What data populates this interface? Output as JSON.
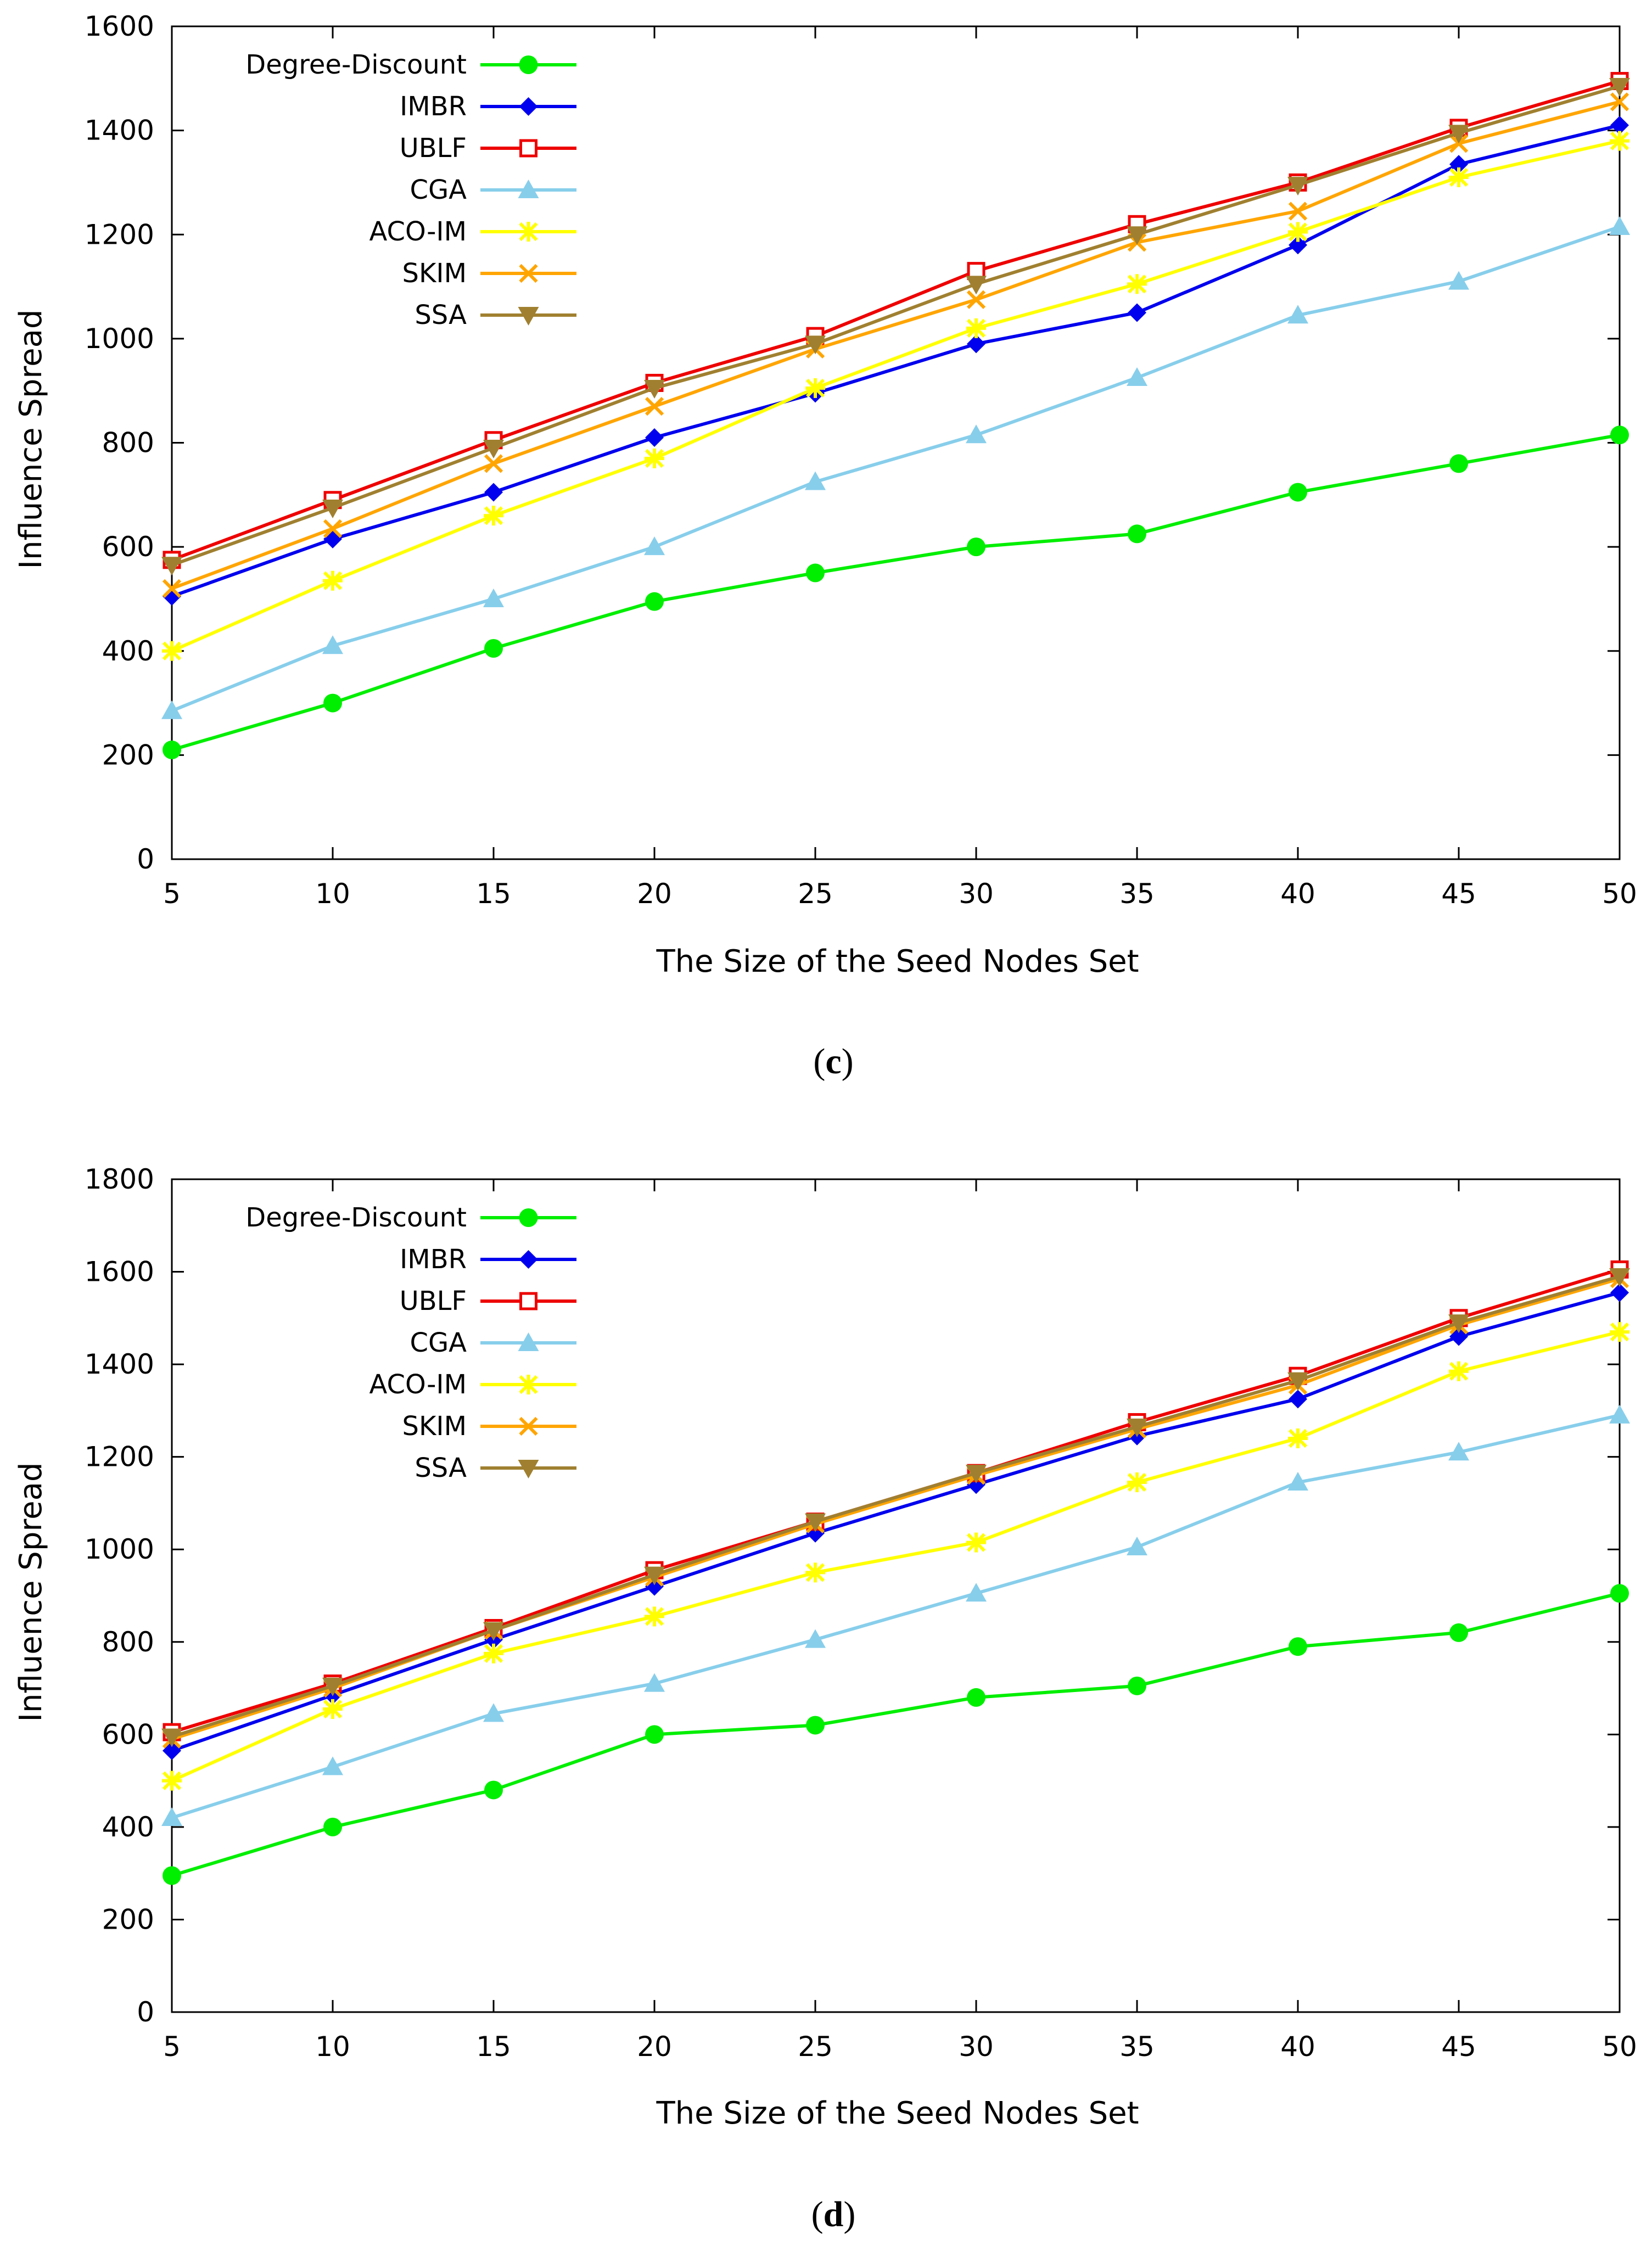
{
  "chart_data": [
    {
      "type": "line",
      "panel": "c",
      "caption_open": "(",
      "caption_letter": "c",
      "caption_close": ")",
      "xlabel": "The Size of the Seed Nodes Set",
      "ylabel": "Influence Spread",
      "x": [
        5,
        10,
        15,
        20,
        25,
        30,
        35,
        40,
        45,
        50
      ],
      "xlim": [
        5,
        50
      ],
      "ylim": [
        0,
        1600
      ],
      "yticks": [
        0,
        200,
        400,
        600,
        800,
        1000,
        1200,
        1400,
        1600
      ],
      "legend_position": "top-left",
      "series": [
        {
          "name": "Degree-Discount",
          "color": "#00ee00",
          "marker": "circle",
          "values": [
            210,
            300,
            405,
            495,
            550,
            600,
            625,
            705,
            760,
            815
          ]
        },
        {
          "name": "IMBR",
          "color": "#0000ee",
          "marker": "diamond",
          "values": [
            505,
            615,
            705,
            810,
            895,
            990,
            1050,
            1180,
            1335,
            1410
          ]
        },
        {
          "name": "UBLF",
          "color": "#ee0000",
          "marker": "square",
          "values": [
            575,
            690,
            805,
            915,
            1005,
            1130,
            1220,
            1300,
            1405,
            1495
          ]
        },
        {
          "name": "CGA",
          "color": "#87ceeb",
          "marker": "triangle",
          "values": [
            285,
            410,
            500,
            600,
            725,
            815,
            925,
            1045,
            1110,
            1215
          ]
        },
        {
          "name": "ACO-IM",
          "color": "#ffff00",
          "marker": "star",
          "values": [
            400,
            535,
            660,
            770,
            905,
            1020,
            1105,
            1205,
            1310,
            1380
          ]
        },
        {
          "name": "SKIM",
          "color": "#ffa500",
          "marker": "x",
          "values": [
            520,
            635,
            760,
            870,
            980,
            1075,
            1185,
            1245,
            1375,
            1455
          ]
        },
        {
          "name": "SSA",
          "color": "#a08030",
          "marker": "triangle-down",
          "values": [
            565,
            675,
            790,
            905,
            990,
            1105,
            1200,
            1295,
            1395,
            1485
          ]
        }
      ]
    },
    {
      "type": "line",
      "panel": "d",
      "caption_open": "(",
      "caption_letter": "d",
      "caption_close": ")",
      "xlabel": "The Size of the Seed Nodes Set",
      "ylabel": "Influence Spread",
      "x": [
        5,
        10,
        15,
        20,
        25,
        30,
        35,
        40,
        45,
        50
      ],
      "xlim": [
        5,
        50
      ],
      "ylim": [
        0,
        1800
      ],
      "yticks": [
        0,
        200,
        400,
        600,
        800,
        1000,
        1200,
        1400,
        1600,
        1800
      ],
      "legend_position": "top-left",
      "series": [
        {
          "name": "Degree-Discount",
          "color": "#00ee00",
          "marker": "circle",
          "values": [
            295,
            400,
            480,
            600,
            620,
            680,
            705,
            790,
            820,
            905
          ]
        },
        {
          "name": "IMBR",
          "color": "#0000ee",
          "marker": "diamond",
          "values": [
            565,
            685,
            805,
            920,
            1035,
            1140,
            1245,
            1325,
            1460,
            1555
          ]
        },
        {
          "name": "UBLF",
          "color": "#ee0000",
          "marker": "square",
          "values": [
            605,
            710,
            830,
            955,
            1060,
            1165,
            1275,
            1375,
            1500,
            1605
          ]
        },
        {
          "name": "CGA",
          "color": "#87ceeb",
          "marker": "triangle",
          "values": [
            420,
            530,
            645,
            710,
            805,
            905,
            1005,
            1145,
            1210,
            1290
          ]
        },
        {
          "name": "ACO-IM",
          "color": "#ffff00",
          "marker": "star",
          "values": [
            500,
            655,
            775,
            855,
            950,
            1015,
            1145,
            1240,
            1385,
            1470
          ]
        },
        {
          "name": "SKIM",
          "color": "#ffa500",
          "marker": "x",
          "values": [
            590,
            700,
            825,
            940,
            1055,
            1160,
            1260,
            1355,
            1485,
            1585
          ]
        },
        {
          "name": "SSA",
          "color": "#a08030",
          "marker": "triangle-down",
          "values": [
            595,
            705,
            825,
            945,
            1060,
            1165,
            1265,
            1365,
            1490,
            1590
          ]
        }
      ]
    }
  ]
}
